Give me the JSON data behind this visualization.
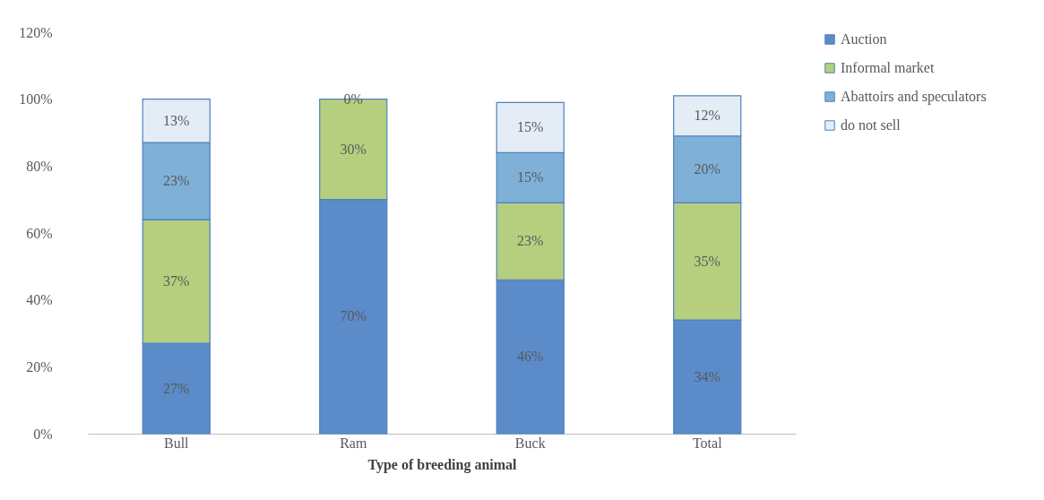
{
  "chart_data": {
    "type": "bar",
    "stacked": true,
    "xlabel": "Type of breeding animal",
    "categories": [
      "Bull",
      "Ram",
      "Buck",
      "Total"
    ],
    "ylim": [
      0,
      120
    ],
    "yticks": [
      {
        "value": 0,
        "label": "0%"
      },
      {
        "value": 20,
        "label": "20%"
      },
      {
        "value": 40,
        "label": "40%"
      },
      {
        "value": 60,
        "label": "60%"
      },
      {
        "value": 80,
        "label": "80%"
      },
      {
        "value": 100,
        "label": "100%"
      },
      {
        "value": 120,
        "label": "120%"
      }
    ],
    "legend": "right",
    "series": [
      {
        "name": "Auction",
        "color": "#5b8bc9",
        "values": [
          27,
          70,
          46,
          34
        ],
        "value_labels": [
          "27%",
          "70%",
          "46%",
          "34%"
        ]
      },
      {
        "name": "Informal market",
        "color": "#b5cf7f",
        "values": [
          37,
          30,
          23,
          35
        ],
        "value_labels": [
          "37%",
          "30%",
          "23%",
          "35%"
        ]
      },
      {
        "name": "Abattoirs and speculators",
        "color": "#7fb0d8",
        "values": [
          23,
          null,
          15,
          20
        ],
        "value_labels": [
          "23%",
          null,
          "15%",
          "20%"
        ]
      },
      {
        "name": "do not sell",
        "color": "#e4ecf6",
        "values": [
          13,
          0,
          15,
          12
        ],
        "value_labels": [
          "13%",
          "0%",
          "15%",
          "12%"
        ]
      }
    ]
  }
}
